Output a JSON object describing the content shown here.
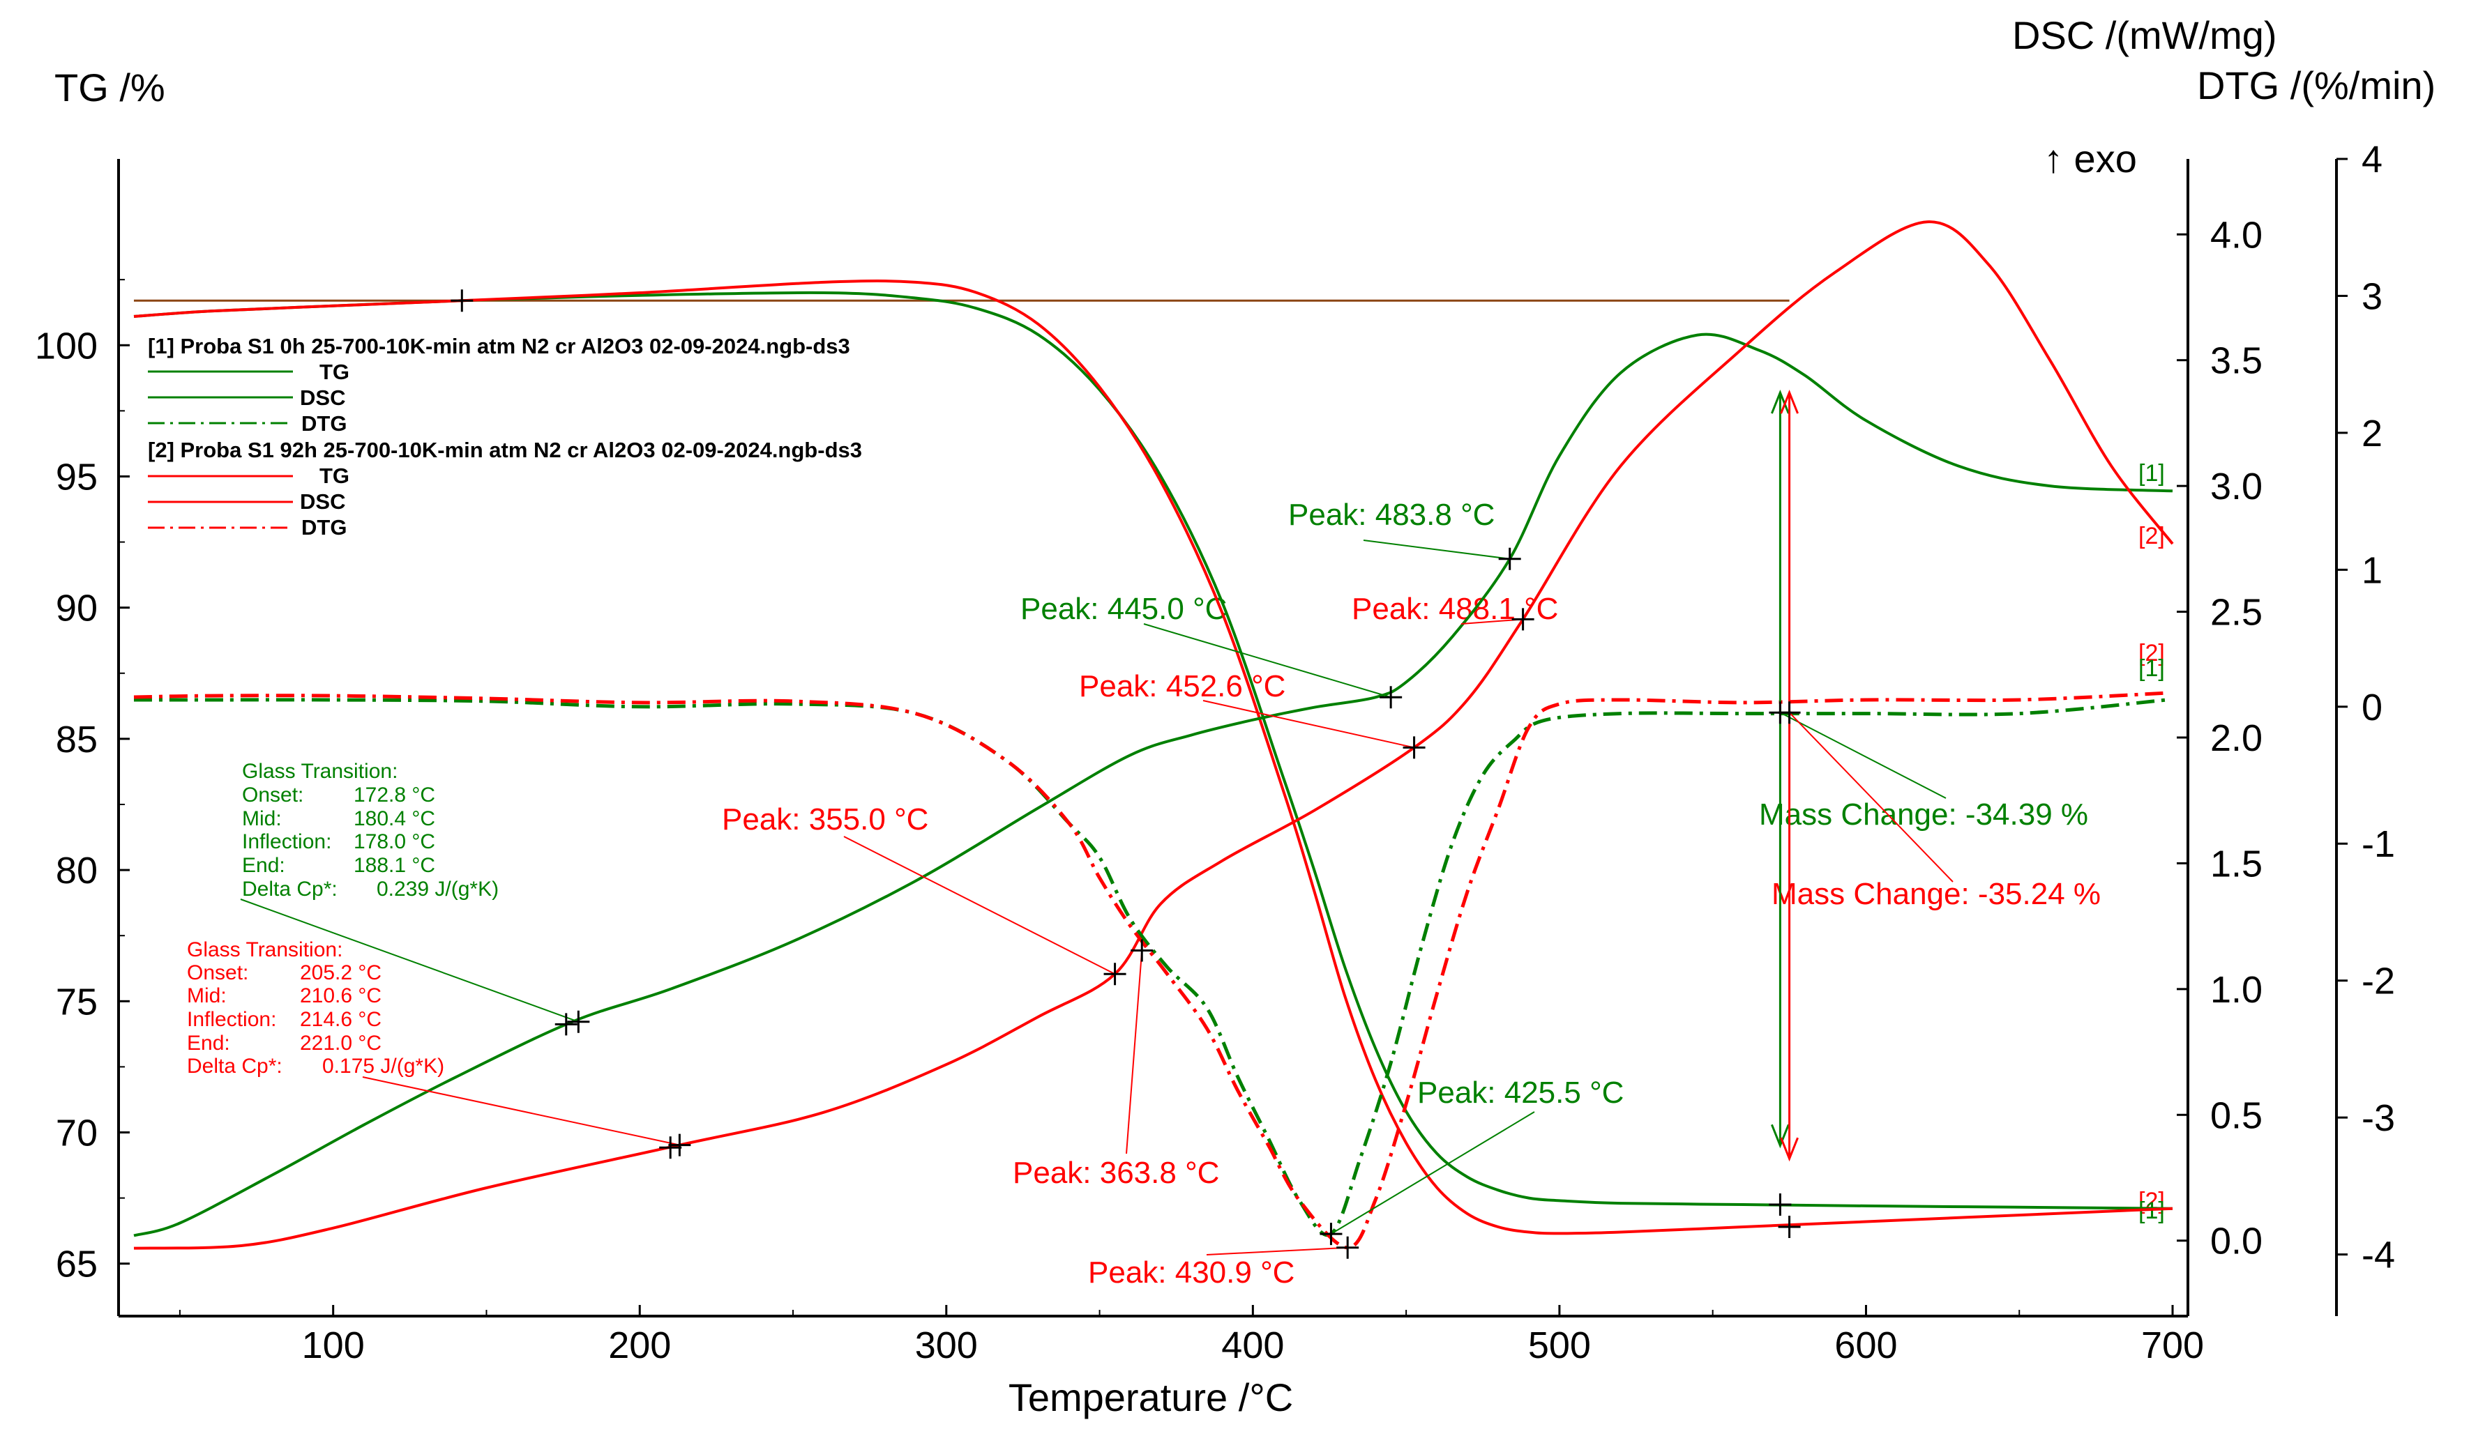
{
  "colors": {
    "s1": "#008000",
    "s2": "#ff0000",
    "axis": "#000000",
    "ref": "#8b4513"
  },
  "chart_data": {
    "type": "line",
    "xlabel": "Temperature /°C",
    "y_left_label": "TG /%",
    "y_right_label_1": "DSC /(mW/mg)",
    "y_right_label_2": "DTG /(%/min)",
    "exo_label": "↑ exo",
    "xlim": [
      30,
      705
    ],
    "ylim_tg": [
      63,
      107.1
    ],
    "ylim_dsc": [
      -0.3,
      4.3
    ],
    "ylim_dtg": [
      -4.45,
      4.0
    ],
    "x_ticks": [
      100,
      200,
      300,
      400,
      500,
      600,
      700
    ],
    "tg_ticks": [
      65,
      70,
      75,
      80,
      85,
      90,
      95,
      100
    ],
    "dsc_ticks": [
      {
        "v": 0,
        "t": "0.0"
      },
      {
        "v": 0.5,
        "t": "0.5"
      },
      {
        "v": 1.0,
        "t": "1.0"
      },
      {
        "v": 1.5,
        "t": "1.5"
      },
      {
        "v": 2.0,
        "t": "2.0"
      },
      {
        "v": 2.5,
        "t": "2.5"
      },
      {
        "v": 3.0,
        "t": "3.0"
      },
      {
        "v": 3.5,
        "t": "3.5"
      },
      {
        "v": 4.0,
        "t": "4.0"
      }
    ],
    "dtg_ticks": [
      {
        "v": -4,
        "t": "-4"
      },
      {
        "v": -3,
        "t": "-3"
      },
      {
        "v": -2,
        "t": "-2"
      },
      {
        "v": -1,
        "t": "-1"
      },
      {
        "v": 0,
        "t": "0"
      },
      {
        "v": 1,
        "t": "1"
      },
      {
        "v": 2,
        "t": "2"
      },
      {
        "v": 3,
        "t": "3"
      },
      {
        "v": 4,
        "t": "4"
      }
    ],
    "legend": {
      "s1_title": "[1] Proba S1 0h 25-700-10K-min atm N2 cr Al2O3 02-09-2024.ngb-ds3",
      "s2_title": "[2] Proba S1 92h 25-700-10K-min atm N2 cr Al2O3 02-09-2024.ngb-ds3",
      "tg": "TG",
      "dsc": "DSC",
      "dtg": "DTG"
    },
    "series": [
      {
        "name": "TG",
        "sample": 1,
        "axis": "tg",
        "style": "solid",
        "x": [
          35,
          60,
          100,
          142,
          200,
          260,
          290,
          310,
          330,
          350,
          370,
          390,
          410,
          420,
          430,
          440,
          450,
          460,
          470,
          480,
          490,
          500,
          520,
          560,
          600,
          650,
          700
        ],
        "y": [
          101.1,
          101.3,
          101.5,
          101.7,
          101.9,
          102.0,
          101.8,
          101.4,
          100.4,
          98.3,
          95.0,
          90.2,
          83.5,
          80.0,
          76.3,
          73.2,
          70.8,
          69.2,
          68.3,
          67.8,
          67.5,
          67.4,
          67.3,
          67.25,
          67.2,
          67.15,
          67.1
        ]
      },
      {
        "name": "TG",
        "sample": 2,
        "axis": "tg",
        "style": "solid",
        "x": [
          35,
          60,
          100,
          142,
          200,
          260,
          290,
          310,
          330,
          350,
          370,
          390,
          410,
          420,
          430,
          440,
          450,
          460,
          470,
          480,
          490,
          500,
          520,
          560,
          600,
          650,
          700
        ],
        "y": [
          101.1,
          101.3,
          101.5,
          101.7,
          102.0,
          102.4,
          102.4,
          102.0,
          100.8,
          98.4,
          94.8,
          89.8,
          83.0,
          79.2,
          75.2,
          72.0,
          69.6,
          67.9,
          66.9,
          66.4,
          66.2,
          66.15,
          66.2,
          66.4,
          66.6,
          66.85,
          67.1
        ]
      },
      {
        "name": "DSC",
        "sample": 1,
        "axis": "dsc",
        "style": "solid",
        "x": [
          35,
          50,
          80,
          110,
          140,
          178,
          210,
          250,
          290,
          330,
          360,
          380,
          400,
          420,
          440,
          450,
          465,
          483.8,
          500,
          520,
          545,
          565,
          580,
          600,
          630,
          660,
          700
        ],
        "y": [
          0.02,
          0.07,
          0.26,
          0.46,
          0.65,
          0.87,
          1.0,
          1.19,
          1.43,
          1.72,
          1.93,
          2.01,
          2.07,
          2.12,
          2.16,
          2.22,
          2.4,
          2.71,
          3.12,
          3.45,
          3.6,
          3.54,
          3.44,
          3.26,
          3.08,
          3.0,
          2.98
        ]
      },
      {
        "name": "DSC",
        "sample": 2,
        "axis": "dsc",
        "style": "solid",
        "x": [
          35,
          70,
          100,
          150,
          213,
          260,
          300,
          330,
          355,
          370,
          390,
          420,
          452.6,
          470,
          488.1,
          520,
          560,
          590,
          620,
          640,
          660,
          680,
          700
        ],
        "y": [
          -0.03,
          -0.02,
          0.05,
          0.21,
          0.38,
          0.51,
          0.7,
          0.89,
          1.06,
          1.34,
          1.51,
          1.71,
          1.96,
          2.15,
          2.47,
          3.08,
          3.55,
          3.85,
          4.05,
          3.88,
          3.5,
          3.08,
          2.77
        ]
      },
      {
        "name": "DTG",
        "sample": 1,
        "axis": "dtg",
        "style": "dashdot",
        "x": [
          35,
          60,
          100,
          150,
          200,
          250,
          290,
          320,
          340,
          350,
          360,
          372,
          385,
          395,
          405,
          415,
          425.5,
          435,
          445,
          455,
          465,
          475,
          485,
          495,
          520,
          560,
          600,
          650,
          698
        ],
        "y": [
          0.05,
          0.05,
          0.05,
          0.04,
          0.0,
          0.02,
          -0.05,
          -0.4,
          -0.85,
          -1.1,
          -1.55,
          -1.9,
          -2.2,
          -2.7,
          -3.15,
          -3.6,
          -3.85,
          -3.3,
          -2.6,
          -1.75,
          -1.0,
          -0.5,
          -0.25,
          -0.1,
          -0.05,
          -0.05,
          -0.05,
          -0.05,
          0.05
        ]
      },
      {
        "name": "DTG",
        "sample": 2,
        "axis": "dtg",
        "style": "dashdot",
        "x": [
          35,
          60,
          100,
          150,
          200,
          250,
          290,
          320,
          340,
          350,
          360,
          372,
          385,
          395,
          405,
          415,
          430.9,
          440,
          450,
          460,
          470,
          480,
          490,
          500,
          520,
          560,
          600,
          650,
          698
        ],
        "y": [
          0.07,
          0.08,
          0.08,
          0.06,
          0.03,
          0.04,
          -0.05,
          -0.4,
          -0.85,
          -1.25,
          -1.6,
          -1.95,
          -2.35,
          -2.8,
          -3.2,
          -3.6,
          -3.95,
          -3.6,
          -2.9,
          -2.1,
          -1.35,
          -0.75,
          -0.15,
          0.02,
          0.05,
          0.03,
          0.05,
          0.05,
          0.1
        ]
      }
    ],
    "reference_line": {
      "x0": 35,
      "x1": 575,
      "y": 101.7
    },
    "mass_changes": [
      {
        "sample": 1,
        "x": 572,
        "tg_from": 98.2,
        "tg_to": 69.5,
        "label": "Mass Change: -34.39 %"
      },
      {
        "sample": 2,
        "x": 575,
        "tg_from": 98.2,
        "tg_to": 69.0,
        "label": "Mass Change: -35.24 %"
      }
    ],
    "peaks": [
      {
        "sample": 1,
        "label": "Peak: 483.8 °C"
      },
      {
        "sample": 1,
        "label": "Peak: 445.0 °C"
      },
      {
        "sample": 2,
        "label": "Peak: 488.1 °C"
      },
      {
        "sample": 2,
        "label": "Peak: 452.6 °C"
      },
      {
        "sample": 2,
        "label": "Peak: 355.0 °C"
      },
      {
        "sample": 2,
        "label": "Peak: 363.8 °C"
      },
      {
        "sample": 1,
        "label": "Peak: 425.5 °C"
      },
      {
        "sample": 2,
        "label": "Peak: 430.9 °C"
      }
    ],
    "glass_transitions": [
      {
        "sample": 1,
        "lines": [
          "Glass Transition:",
          "Onset:",
          "Mid:",
          "Inflection:",
          "End:",
          "Delta Cp*:"
        ],
        "values": [
          "",
          "172.8 °C",
          "180.4 °C",
          "178.0 °C",
          "188.1 °C",
          "0.239 J/(g*K)"
        ]
      },
      {
        "sample": 2,
        "lines": [
          "Glass Transition:",
          "Onset:",
          "Mid:",
          "Inflection:",
          "End:",
          "Delta Cp*:"
        ],
        "values": [
          "",
          "205.2 °C",
          "210.6 °C",
          "214.6 °C",
          "221.0 °C",
          "0.175 J/(g*K)"
        ]
      }
    ],
    "end_tags": [
      {
        "sample": 1,
        "text": "[1]"
      },
      {
        "sample": 2,
        "text": "[2]"
      }
    ]
  }
}
